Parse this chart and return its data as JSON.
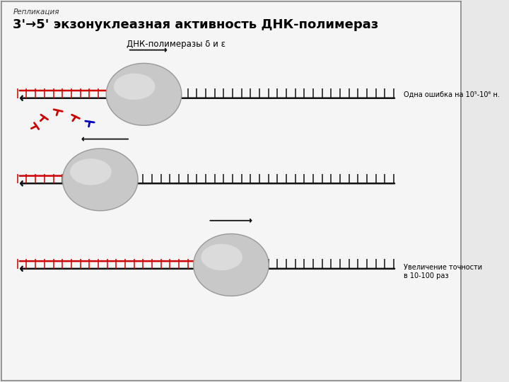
{
  "title_small": "Репликация",
  "title_main": "3'→5' экзонуклеазная активность ДНК-полимераз",
  "subtitle": "ДНК-полимеразы δ и ε",
  "annotation1": "Одна ошибка на 10⁵-10⁶ н.",
  "annotation2": "Увеличение точности\nв 10-100 раз",
  "bg_color": "#e8e8e8",
  "box_color": "#f5f5f5",
  "strand_color_red": "#cc0000",
  "strand_color_black": "#111111",
  "nucleotide_red": "#cc0000",
  "nucleotide_blue": "#0000bb"
}
